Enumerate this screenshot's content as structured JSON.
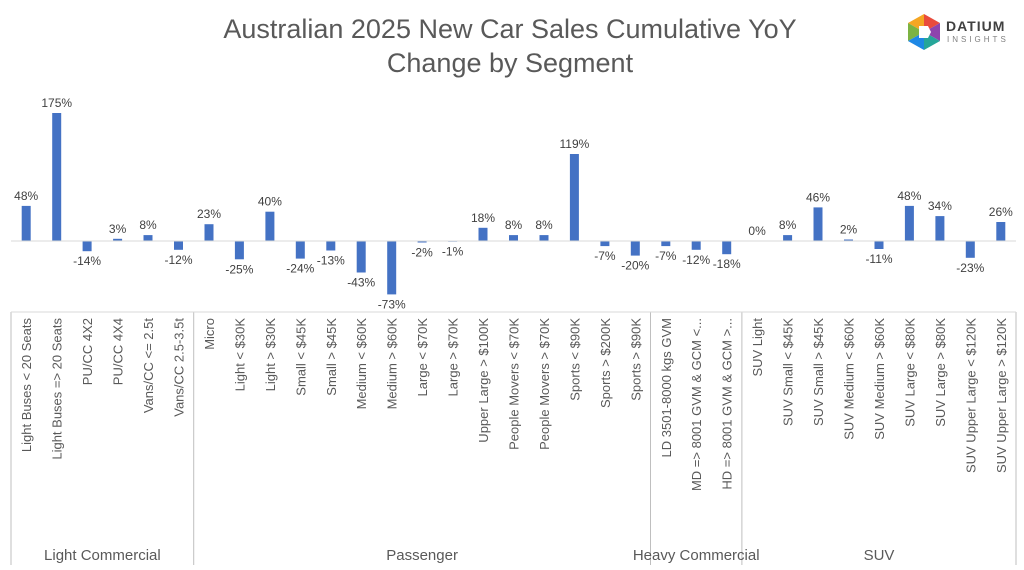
{
  "title_line1": "Australian 2025 New Car Sales Cumulative YoY",
  "title_line2": "Change by Segment",
  "logo": {
    "word": "DATIUM",
    "sub": "INSIGHTS"
  },
  "chart_data": {
    "type": "bar",
    "title": "Australian 2025 New Car Sales Cumulative YoY Change by Segment",
    "value_format": "percent",
    "bar_color": "#4472C4",
    "categories": [
      "Light Buses < 20 Seats",
      "Light Buses => 20 Seats",
      "PU/CC 4X2",
      "PU/CC 4X4",
      "Vans/CC <= 2.5t",
      "Vans/CC 2.5-3.5t",
      "Micro",
      "Light < $30K",
      "Light > $30K",
      "Small < $45K",
      "Small > $45K",
      "Medium < $60K",
      "Medium > $60K",
      "Large < $70K",
      "Large > $70K",
      "Upper Large > $100K",
      "People Movers < $70K",
      "People Movers > $70K",
      "Sports < $90K",
      "Sports > $200K",
      "Sports > $90K",
      "LD 3501-8000 kgs GVM",
      "MD => 8001 GVM & GCM <...",
      "HD => 8001 GVM & GCM >...",
      "SUV Light",
      "SUV Small < $45K",
      "SUV Small > $45K",
      "SUV Medium < $60K",
      "SUV Medium > $60K",
      "SUV Large < $80K",
      "SUV Large > $80K",
      "SUV Upper Large < $120K",
      "SUV Upper Large > $120K"
    ],
    "values": [
      48,
      175,
      -14,
      3,
      8,
      -12,
      23,
      -25,
      40,
      -24,
      -13,
      -43,
      -73,
      -2,
      -1,
      18,
      8,
      8,
      119,
      -7,
      -20,
      -7,
      -12,
      -18,
      0,
      8,
      46,
      2,
      -11,
      48,
      34,
      -23,
      26
    ],
    "data_labels": [
      "48%",
      "175%",
      "-14%",
      "3%",
      "8%",
      "-12%",
      "23%",
      "-25%",
      "40%",
      "-24%",
      "-13%",
      "-43%",
      "-73%",
      "-2%",
      "-1%",
      "18%",
      "8%",
      "8%",
      "119%",
      "-7%",
      "-20%",
      "-7%",
      "-12%",
      "-18%",
      "0%",
      "8%",
      "46%",
      "2%",
      "-11%",
      "48%",
      "34%",
      "-23%",
      "26%"
    ],
    "groups": [
      {
        "name": "Light Commercial",
        "count": 6
      },
      {
        "name": "Passenger",
        "count": 15
      },
      {
        "name": "Heavy Commercial",
        "count": 3
      },
      {
        "name": "SUV",
        "count": 9
      }
    ],
    "grid": false,
    "legend": "none"
  }
}
